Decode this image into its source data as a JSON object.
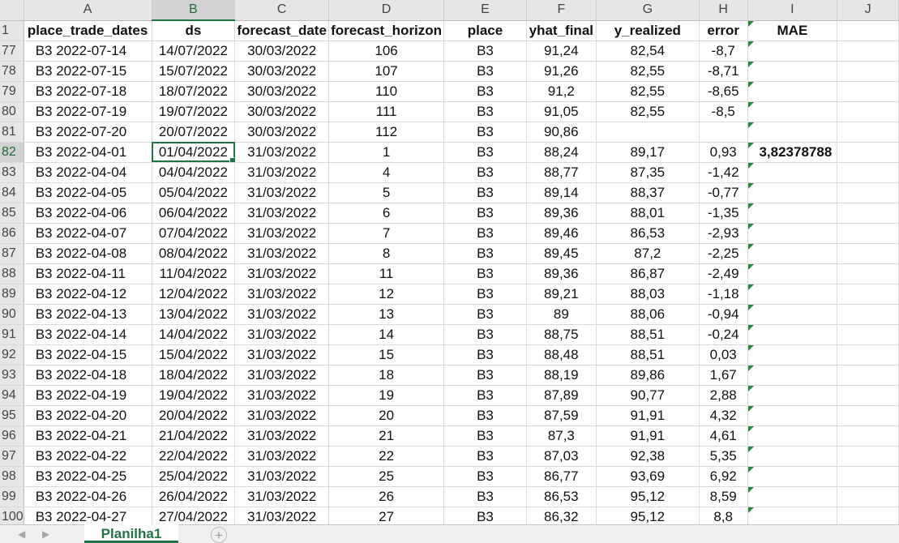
{
  "columns": [
    "A",
    "B",
    "C",
    "D",
    "E",
    "F",
    "G",
    "H",
    "I",
    "J"
  ],
  "headers": {
    "A": "place_trade_dates",
    "B": "ds",
    "C": "forecast_date",
    "D": "forecast_horizon",
    "E": "place",
    "F": "yhat_final",
    "G": "y_realized",
    "H": "error",
    "I": "MAE"
  },
  "rows": [
    {
      "n": "77",
      "a": "B3  2022-07-14",
      "b": "14/07/2022",
      "c": "30/03/2022",
      "d": "106",
      "e": "B3",
      "f": "91,24",
      "g": "82,54",
      "h": "-8,7",
      "i": ""
    },
    {
      "n": "78",
      "a": "B3  2022-07-15",
      "b": "15/07/2022",
      "c": "30/03/2022",
      "d": "107",
      "e": "B3",
      "f": "91,26",
      "g": "82,55",
      "h": "-8,71",
      "i": ""
    },
    {
      "n": "79",
      "a": "B3  2022-07-18",
      "b": "18/07/2022",
      "c": "30/03/2022",
      "d": "110",
      "e": "B3",
      "f": "91,2",
      "g": "82,55",
      "h": "-8,65",
      "i": ""
    },
    {
      "n": "80",
      "a": "B3  2022-07-19",
      "b": "19/07/2022",
      "c": "30/03/2022",
      "d": "111",
      "e": "B3",
      "f": "91,05",
      "g": "82,55",
      "h": "-8,5",
      "i": ""
    },
    {
      "n": "81",
      "a": "B3  2022-07-20",
      "b": "20/07/2022",
      "c": "30/03/2022",
      "d": "112",
      "e": "B3",
      "f": "90,86",
      "g": "",
      "h": "",
      "i": ""
    },
    {
      "n": "82",
      "a": "B3  2022-04-01",
      "b": "01/04/2022",
      "c": "31/03/2022",
      "d": "1",
      "e": "B3",
      "f": "88,24",
      "g": "89,17",
      "h": "0,93",
      "i": "3,82378788"
    },
    {
      "n": "83",
      "a": "B3  2022-04-04",
      "b": "04/04/2022",
      "c": "31/03/2022",
      "d": "4",
      "e": "B3",
      "f": "88,77",
      "g": "87,35",
      "h": "-1,42",
      "i": ""
    },
    {
      "n": "84",
      "a": "B3  2022-04-05",
      "b": "05/04/2022",
      "c": "31/03/2022",
      "d": "5",
      "e": "B3",
      "f": "89,14",
      "g": "88,37",
      "h": "-0,77",
      "i": ""
    },
    {
      "n": "85",
      "a": "B3  2022-04-06",
      "b": "06/04/2022",
      "c": "31/03/2022",
      "d": "6",
      "e": "B3",
      "f": "89,36",
      "g": "88,01",
      "h": "-1,35",
      "i": ""
    },
    {
      "n": "86",
      "a": "B3  2022-04-07",
      "b": "07/04/2022",
      "c": "31/03/2022",
      "d": "7",
      "e": "B3",
      "f": "89,46",
      "g": "86,53",
      "h": "-2,93",
      "i": ""
    },
    {
      "n": "87",
      "a": "B3  2022-04-08",
      "b": "08/04/2022",
      "c": "31/03/2022",
      "d": "8",
      "e": "B3",
      "f": "89,45",
      "g": "87,2",
      "h": "-2,25",
      "i": ""
    },
    {
      "n": "88",
      "a": "B3  2022-04-11",
      "b": "11/04/2022",
      "c": "31/03/2022",
      "d": "11",
      "e": "B3",
      "f": "89,36",
      "g": "86,87",
      "h": "-2,49",
      "i": ""
    },
    {
      "n": "89",
      "a": "B3  2022-04-12",
      "b": "12/04/2022",
      "c": "31/03/2022",
      "d": "12",
      "e": "B3",
      "f": "89,21",
      "g": "88,03",
      "h": "-1,18",
      "i": ""
    },
    {
      "n": "90",
      "a": "B3  2022-04-13",
      "b": "13/04/2022",
      "c": "31/03/2022",
      "d": "13",
      "e": "B3",
      "f": "89",
      "g": "88,06",
      "h": "-0,94",
      "i": ""
    },
    {
      "n": "91",
      "a": "B3  2022-04-14",
      "b": "14/04/2022",
      "c": "31/03/2022",
      "d": "14",
      "e": "B3",
      "f": "88,75",
      "g": "88,51",
      "h": "-0,24",
      "i": ""
    },
    {
      "n": "92",
      "a": "B3  2022-04-15",
      "b": "15/04/2022",
      "c": "31/03/2022",
      "d": "15",
      "e": "B3",
      "f": "88,48",
      "g": "88,51",
      "h": "0,03",
      "i": ""
    },
    {
      "n": "93",
      "a": "B3  2022-04-18",
      "b": "18/04/2022",
      "c": "31/03/2022",
      "d": "18",
      "e": "B3",
      "f": "88,19",
      "g": "89,86",
      "h": "1,67",
      "i": ""
    },
    {
      "n": "94",
      "a": "B3  2022-04-19",
      "b": "19/04/2022",
      "c": "31/03/2022",
      "d": "19",
      "e": "B3",
      "f": "87,89",
      "g": "90,77",
      "h": "2,88",
      "i": ""
    },
    {
      "n": "95",
      "a": "B3  2022-04-20",
      "b": "20/04/2022",
      "c": "31/03/2022",
      "d": "20",
      "e": "B3",
      "f": "87,59",
      "g": "91,91",
      "h": "4,32",
      "i": ""
    },
    {
      "n": "96",
      "a": "B3  2022-04-21",
      "b": "21/04/2022",
      "c": "31/03/2022",
      "d": "21",
      "e": "B3",
      "f": "87,3",
      "g": "91,91",
      "h": "4,61",
      "i": ""
    },
    {
      "n": "97",
      "a": "B3  2022-04-22",
      "b": "22/04/2022",
      "c": "31/03/2022",
      "d": "22",
      "e": "B3",
      "f": "87,03",
      "g": "92,38",
      "h": "5,35",
      "i": ""
    },
    {
      "n": "98",
      "a": "B3  2022-04-25",
      "b": "25/04/2022",
      "c": "31/03/2022",
      "d": "25",
      "e": "B3",
      "f": "86,77",
      "g": "93,69",
      "h": "6,92",
      "i": ""
    },
    {
      "n": "99",
      "a": "B3  2022-04-26",
      "b": "26/04/2022",
      "c": "31/03/2022",
      "d": "26",
      "e": "B3",
      "f": "86,53",
      "g": "95,12",
      "h": "8,59",
      "i": ""
    },
    {
      "n": "100",
      "a": "B3  2022-04-27",
      "b": "27/04/2022",
      "c": "31/03/2022",
      "d": "27",
      "e": "B3",
      "f": "86,32",
      "g": "95,12",
      "h": "8,8",
      "i": ""
    }
  ],
  "header_row_number": "1",
  "active_cell": {
    "row": "82",
    "col": "B"
  },
  "sheet_tab": "Planilha1",
  "add_sheet_symbol": "+",
  "nav_prev_icon": "◀",
  "nav_next_icon": "▶",
  "accent_color": "#217346"
}
